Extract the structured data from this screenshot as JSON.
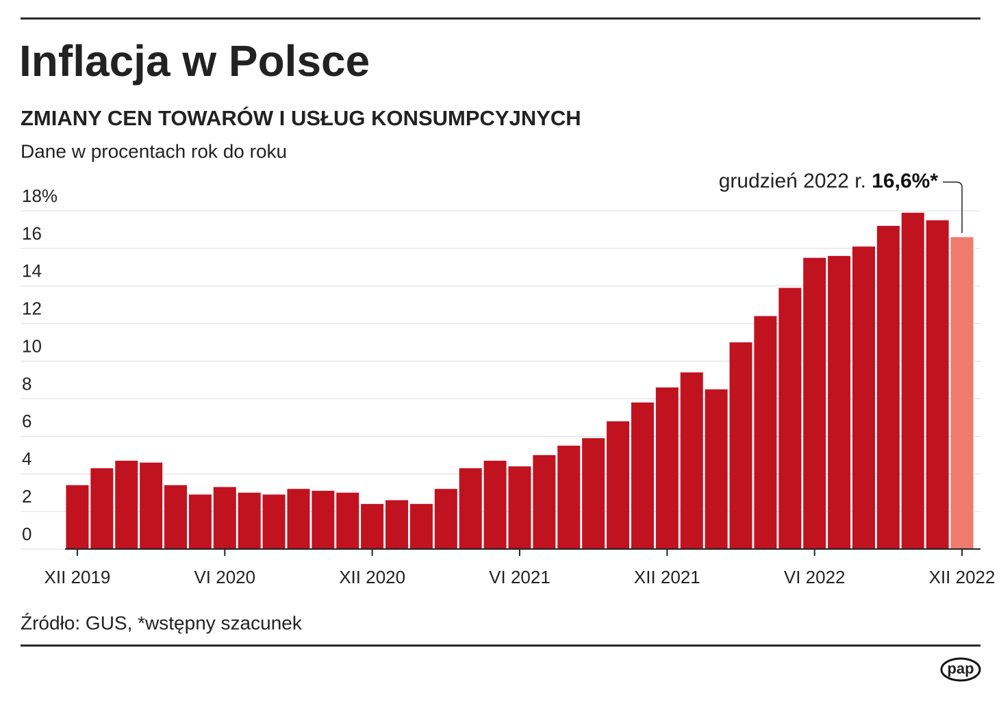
{
  "chart_data": {
    "type": "bar",
    "title": "Inflacja w Polsce",
    "subtitle": "ZMIANY CEN TOWARÓW I USŁUG KONSUMPCYJNYCH",
    "y_label": "Dane w procentach rok do roku",
    "categories": [
      "XII 2019",
      null,
      null,
      null,
      null,
      null,
      "VI 2020",
      null,
      null,
      null,
      null,
      null,
      "XII 2020",
      null,
      null,
      null,
      null,
      null,
      "VI 2021",
      null,
      null,
      null,
      null,
      null,
      "XII 2021",
      null,
      null,
      null,
      null,
      null,
      "VI 2022",
      null,
      null,
      null,
      null,
      null,
      "XII 2022"
    ],
    "values": [
      3.4,
      4.3,
      4.7,
      4.6,
      3.4,
      2.9,
      3.3,
      3.0,
      2.9,
      3.2,
      3.1,
      3.0,
      2.4,
      2.6,
      2.4,
      3.2,
      4.3,
      4.7,
      4.4,
      5.0,
      5.5,
      5.9,
      6.8,
      7.8,
      8.6,
      9.4,
      8.5,
      11.0,
      12.4,
      13.9,
      15.5,
      15.6,
      16.1,
      17.2,
      17.9,
      17.5,
      16.6
    ],
    "colors": [
      "#c1121f",
      "#c1121f",
      "#c1121f",
      "#c1121f",
      "#c1121f",
      "#c1121f",
      "#c1121f",
      "#c1121f",
      "#c1121f",
      "#c1121f",
      "#c1121f",
      "#c1121f",
      "#c1121f",
      "#c1121f",
      "#c1121f",
      "#c1121f",
      "#c1121f",
      "#c1121f",
      "#c1121f",
      "#c1121f",
      "#c1121f",
      "#c1121f",
      "#c1121f",
      "#c1121f",
      "#c1121f",
      "#c1121f",
      "#c1121f",
      "#c1121f",
      "#c1121f",
      "#c1121f",
      "#c1121f",
      "#c1121f",
      "#c1121f",
      "#c1121f",
      "#c1121f",
      "#c1121f",
      "#ee7b6b"
    ],
    "ylim": [
      0,
      18
    ],
    "yticks": [
      0,
      2,
      4,
      6,
      8,
      10,
      12,
      14,
      16,
      {
        "value": 18,
        "label": "18%"
      }
    ],
    "grid": true,
    "annotation": {
      "text": "grudzień 2022 r.",
      "value_label": "16,6%*"
    },
    "source": "Źródło: GUS, *wstępny szacunek",
    "logo": "pap"
  }
}
